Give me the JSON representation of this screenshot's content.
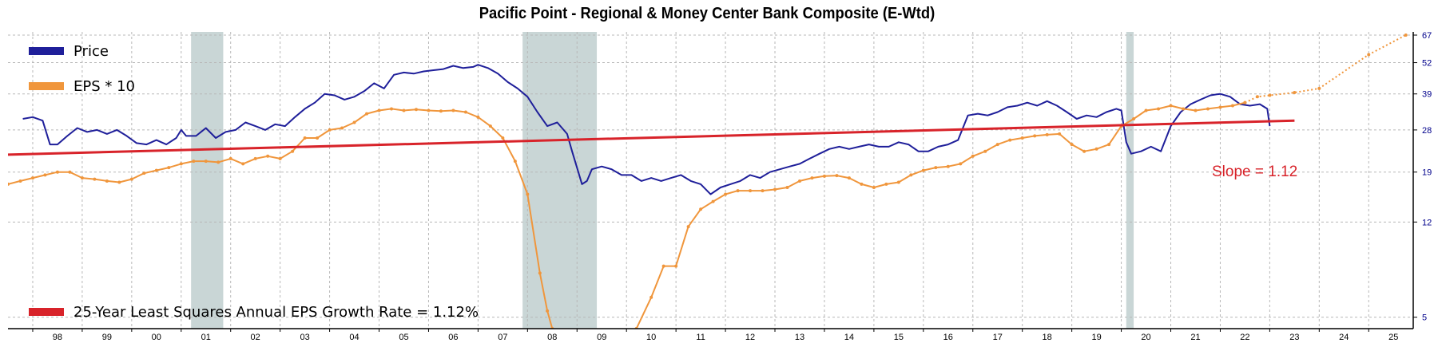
{
  "title": "Pacific Point - Regional & Money Center Bank Composite (E-Wtd)",
  "colors": {
    "price": "#1f1f9a",
    "eps": "#f0963c",
    "trend": "#d8232a",
    "slope_text": "#d8232a",
    "recession": "#c9d6d6",
    "grid": "#b8b8b8",
    "y_tick_text": "#00008b"
  },
  "chart_data": {
    "type": "line",
    "title": "Pacific Point - Regional & Money Center Bank Composite (E-Wtd)",
    "x_tick_labels": [
      "98",
      "99",
      "00",
      "01",
      "02",
      "03",
      "04",
      "05",
      "06",
      "07",
      "08",
      "09",
      "10",
      "11",
      "12",
      "13",
      "14",
      "15",
      "16",
      "17",
      "18",
      "19",
      "20",
      "21",
      "22",
      "23",
      "24",
      "25"
    ],
    "xlim": [
      1997.5,
      2025.9
    ],
    "y_scale": "log",
    "ylim": [
      4.5,
      69
    ],
    "y_tick_labels": [
      "5",
      "12",
      "19",
      "28",
      "39",
      "52",
      "67"
    ],
    "y_ticks": [
      5,
      12,
      19,
      28,
      39,
      52,
      67
    ],
    "grid": true,
    "legend_position": "top-left",
    "recession_bands": [
      [
        2001.2,
        2001.85
      ],
      [
        2007.9,
        2009.4
      ],
      [
        2020.1,
        2020.25
      ]
    ],
    "series": [
      {
        "name": "Price",
        "style": "solid",
        "points": [
          [
            1997.8,
            31
          ],
          [
            1998.0,
            31.5
          ],
          [
            1998.2,
            30.5
          ],
          [
            1998.35,
            24.5
          ],
          [
            1998.5,
            24.5
          ],
          [
            1998.7,
            26.5
          ],
          [
            1998.9,
            28.5
          ],
          [
            1999.1,
            27.5
          ],
          [
            1999.3,
            28
          ],
          [
            1999.5,
            27
          ],
          [
            1999.7,
            28
          ],
          [
            1999.9,
            26.5
          ],
          [
            2000.1,
            24.8
          ],
          [
            2000.3,
            24.5
          ],
          [
            2000.5,
            25.5
          ],
          [
            2000.7,
            24.5
          ],
          [
            2000.9,
            26
          ],
          [
            2001.0,
            28
          ],
          [
            2001.1,
            26.5
          ],
          [
            2001.3,
            26.5
          ],
          [
            2001.5,
            28.5
          ],
          [
            2001.7,
            26
          ],
          [
            2001.9,
            27.5
          ],
          [
            2002.1,
            28
          ],
          [
            2002.3,
            30
          ],
          [
            2002.5,
            29
          ],
          [
            2002.7,
            28
          ],
          [
            2002.9,
            29.5
          ],
          [
            2003.1,
            29
          ],
          [
            2003.3,
            31.5
          ],
          [
            2003.5,
            34
          ],
          [
            2003.7,
            36
          ],
          [
            2003.9,
            39
          ],
          [
            2004.1,
            38.5
          ],
          [
            2004.3,
            37
          ],
          [
            2004.5,
            38
          ],
          [
            2004.7,
            40
          ],
          [
            2004.9,
            43
          ],
          [
            2005.1,
            41
          ],
          [
            2005.3,
            46.5
          ],
          [
            2005.5,
            47.5
          ],
          [
            2005.7,
            47
          ],
          [
            2005.9,
            48
          ],
          [
            2006.1,
            48.5
          ],
          [
            2006.3,
            49
          ],
          [
            2006.5,
            50.5
          ],
          [
            2006.7,
            49.5
          ],
          [
            2006.9,
            50
          ],
          [
            2007.0,
            51
          ],
          [
            2007.2,
            49.5
          ],
          [
            2007.4,
            47
          ],
          [
            2007.6,
            43.5
          ],
          [
            2007.8,
            41
          ],
          [
            2008.0,
            38
          ],
          [
            2008.2,
            33
          ],
          [
            2008.4,
            29
          ],
          [
            2008.6,
            30
          ],
          [
            2008.8,
            27
          ],
          [
            2008.9,
            23
          ],
          [
            2009.1,
            17
          ],
          [
            2009.2,
            17.5
          ],
          [
            2009.3,
            19.5
          ],
          [
            2009.5,
            20
          ],
          [
            2009.7,
            19.5
          ],
          [
            2009.9,
            18.5
          ],
          [
            2010.1,
            18.5
          ],
          [
            2010.3,
            17.5
          ],
          [
            2010.5,
            18
          ],
          [
            2010.7,
            17.5
          ],
          [
            2010.9,
            18
          ],
          [
            2011.1,
            18.5
          ],
          [
            2011.3,
            17.5
          ],
          [
            2011.5,
            17
          ],
          [
            2011.7,
            15.5
          ],
          [
            2011.9,
            16.5
          ],
          [
            2012.1,
            17
          ],
          [
            2012.3,
            17.5
          ],
          [
            2012.5,
            18.5
          ],
          [
            2012.7,
            18
          ],
          [
            2012.9,
            19
          ],
          [
            2013.1,
            19.5
          ],
          [
            2013.3,
            20
          ],
          [
            2013.5,
            20.5
          ],
          [
            2013.7,
            21.5
          ],
          [
            2013.9,
            22.5
          ],
          [
            2014.1,
            23.5
          ],
          [
            2014.3,
            24
          ],
          [
            2014.5,
            23.5
          ],
          [
            2014.7,
            24
          ],
          [
            2014.9,
            24.5
          ],
          [
            2015.1,
            24
          ],
          [
            2015.3,
            24
          ],
          [
            2015.5,
            25
          ],
          [
            2015.7,
            24.5
          ],
          [
            2015.9,
            23
          ],
          [
            2016.1,
            23
          ],
          [
            2016.3,
            24
          ],
          [
            2016.5,
            24.5
          ],
          [
            2016.7,
            25.5
          ],
          [
            2016.9,
            32
          ],
          [
            2017.1,
            32.5
          ],
          [
            2017.3,
            32
          ],
          [
            2017.5,
            33
          ],
          [
            2017.7,
            34.5
          ],
          [
            2017.9,
            35
          ],
          [
            2018.1,
            36
          ],
          [
            2018.3,
            35
          ],
          [
            2018.5,
            36.5
          ],
          [
            2018.7,
            35
          ],
          [
            2018.9,
            33
          ],
          [
            2019.1,
            31
          ],
          [
            2019.3,
            32
          ],
          [
            2019.5,
            31.5
          ],
          [
            2019.7,
            33
          ],
          [
            2019.9,
            34
          ],
          [
            2020.0,
            33.5
          ],
          [
            2020.1,
            25
          ],
          [
            2020.2,
            22.5
          ],
          [
            2020.4,
            23
          ],
          [
            2020.6,
            24
          ],
          [
            2020.8,
            23
          ],
          [
            2021.0,
            29
          ],
          [
            2021.2,
            33
          ],
          [
            2021.4,
            35.5
          ],
          [
            2021.6,
            37
          ],
          [
            2021.8,
            38.5
          ],
          [
            2022.0,
            39
          ],
          [
            2022.2,
            38
          ],
          [
            2022.4,
            35.5
          ],
          [
            2022.6,
            35
          ],
          [
            2022.8,
            35.5
          ],
          [
            2022.95,
            34
          ],
          [
            2023.0,
            29
          ]
        ]
      },
      {
        "name": "EPS * 10",
        "style": "solid-markers",
        "points": [
          [
            1997.5,
            17
          ],
          [
            1997.75,
            17.5
          ],
          [
            1998.0,
            18
          ],
          [
            1998.25,
            18.5
          ],
          [
            1998.5,
            19
          ],
          [
            1998.75,
            19
          ],
          [
            1999.0,
            18
          ],
          [
            1999.25,
            17.8
          ],
          [
            1999.5,
            17.5
          ],
          [
            1999.75,
            17.3
          ],
          [
            2000.0,
            17.8
          ],
          [
            2000.25,
            18.8
          ],
          [
            2000.5,
            19.3
          ],
          [
            2000.75,
            19.8
          ],
          [
            2001.0,
            20.5
          ],
          [
            2001.25,
            21
          ],
          [
            2001.5,
            21
          ],
          [
            2001.75,
            20.8
          ],
          [
            2002.0,
            21.5
          ],
          [
            2002.25,
            20.5
          ],
          [
            2002.5,
            21.5
          ],
          [
            2002.75,
            22
          ],
          [
            2003.0,
            21.5
          ],
          [
            2003.25,
            23
          ],
          [
            2003.5,
            26
          ],
          [
            2003.75,
            26
          ],
          [
            2004.0,
            28
          ],
          [
            2004.25,
            28.5
          ],
          [
            2004.5,
            30
          ],
          [
            2004.75,
            32.5
          ],
          [
            2005.0,
            33.5
          ],
          [
            2005.25,
            34
          ],
          [
            2005.5,
            33.5
          ],
          [
            2005.75,
            33.8
          ],
          [
            2006.0,
            33.5
          ],
          [
            2006.25,
            33.3
          ],
          [
            2006.5,
            33.5
          ],
          [
            2006.75,
            33
          ],
          [
            2007.0,
            31.5
          ],
          [
            2007.25,
            29
          ],
          [
            2007.5,
            26
          ],
          [
            2007.75,
            21
          ],
          [
            2008.0,
            15.5
          ],
          [
            2008.25,
            7.5
          ],
          [
            2008.4,
            5.3
          ],
          [
            2008.5,
            4.5
          ]
        ]
      },
      {
        "name": "EPS * 10 (after 2010)",
        "style": "solid-markers",
        "points": [
          [
            2010.2,
            4.5
          ],
          [
            2010.5,
            6
          ],
          [
            2010.75,
            8
          ],
          [
            2011.0,
            8
          ],
          [
            2011.25,
            11.5
          ],
          [
            2011.5,
            13.5
          ],
          [
            2011.75,
            14.5
          ],
          [
            2012.0,
            15.5
          ],
          [
            2012.25,
            16
          ],
          [
            2012.5,
            16
          ],
          [
            2012.75,
            16
          ],
          [
            2013.0,
            16.2
          ],
          [
            2013.25,
            16.5
          ],
          [
            2013.5,
            17.5
          ],
          [
            2013.75,
            18
          ],
          [
            2014.0,
            18.3
          ],
          [
            2014.25,
            18.4
          ],
          [
            2014.5,
            18
          ],
          [
            2014.75,
            17
          ],
          [
            2015.0,
            16.5
          ],
          [
            2015.25,
            17
          ],
          [
            2015.5,
            17.3
          ],
          [
            2015.75,
            18.5
          ],
          [
            2016.0,
            19.3
          ],
          [
            2016.25,
            19.8
          ],
          [
            2016.5,
            20
          ],
          [
            2016.75,
            20.5
          ],
          [
            2017.0,
            22
          ],
          [
            2017.25,
            23
          ],
          [
            2017.5,
            24.5
          ],
          [
            2017.75,
            25.5
          ],
          [
            2018.0,
            26
          ],
          [
            2018.25,
            26.5
          ],
          [
            2018.5,
            26.8
          ],
          [
            2018.75,
            27
          ],
          [
            2019.0,
            24.5
          ],
          [
            2019.25,
            23
          ],
          [
            2019.5,
            23.5
          ],
          [
            2019.75,
            24.5
          ],
          [
            2020.0,
            29
          ],
          [
            2020.25,
            31
          ],
          [
            2020.5,
            33.5
          ],
          [
            2020.75,
            34
          ],
          [
            2021.0,
            35
          ],
          [
            2021.25,
            34
          ],
          [
            2021.5,
            33.5
          ],
          [
            2021.75,
            34
          ],
          [
            2022.0,
            34.5
          ],
          [
            2022.25,
            35
          ],
          [
            2022.5,
            36
          ]
        ]
      },
      {
        "name": "EPS * 10 (projected)",
        "style": "dotted",
        "points": [
          [
            2022.5,
            36
          ],
          [
            2022.75,
            38
          ],
          [
            2023.0,
            38.5
          ],
          [
            2023.5,
            39.5
          ],
          [
            2024.0,
            41
          ],
          [
            2025.0,
            56
          ],
          [
            2025.75,
            67
          ]
        ]
      },
      {
        "name": "25-Year Least Squares Annual EPS Growth Rate = 1.12%",
        "style": "trend",
        "points": [
          [
            1997.5,
            22.3
          ],
          [
            2023.5,
            30.5
          ]
        ]
      }
    ],
    "legend": [
      {
        "label": "Price",
        "color_key": "price",
        "position": "top-left"
      },
      {
        "label": "EPS * 10",
        "color_key": "eps",
        "position": "top-left"
      },
      {
        "label": "25-Year Least Squares Annual EPS Growth Rate = 1.12%",
        "color_key": "trend",
        "position": "bottom-left"
      }
    ],
    "annotations": [
      {
        "text": "Slope = 1.12",
        "x": 2023.0,
        "y": 25
      }
    ]
  }
}
